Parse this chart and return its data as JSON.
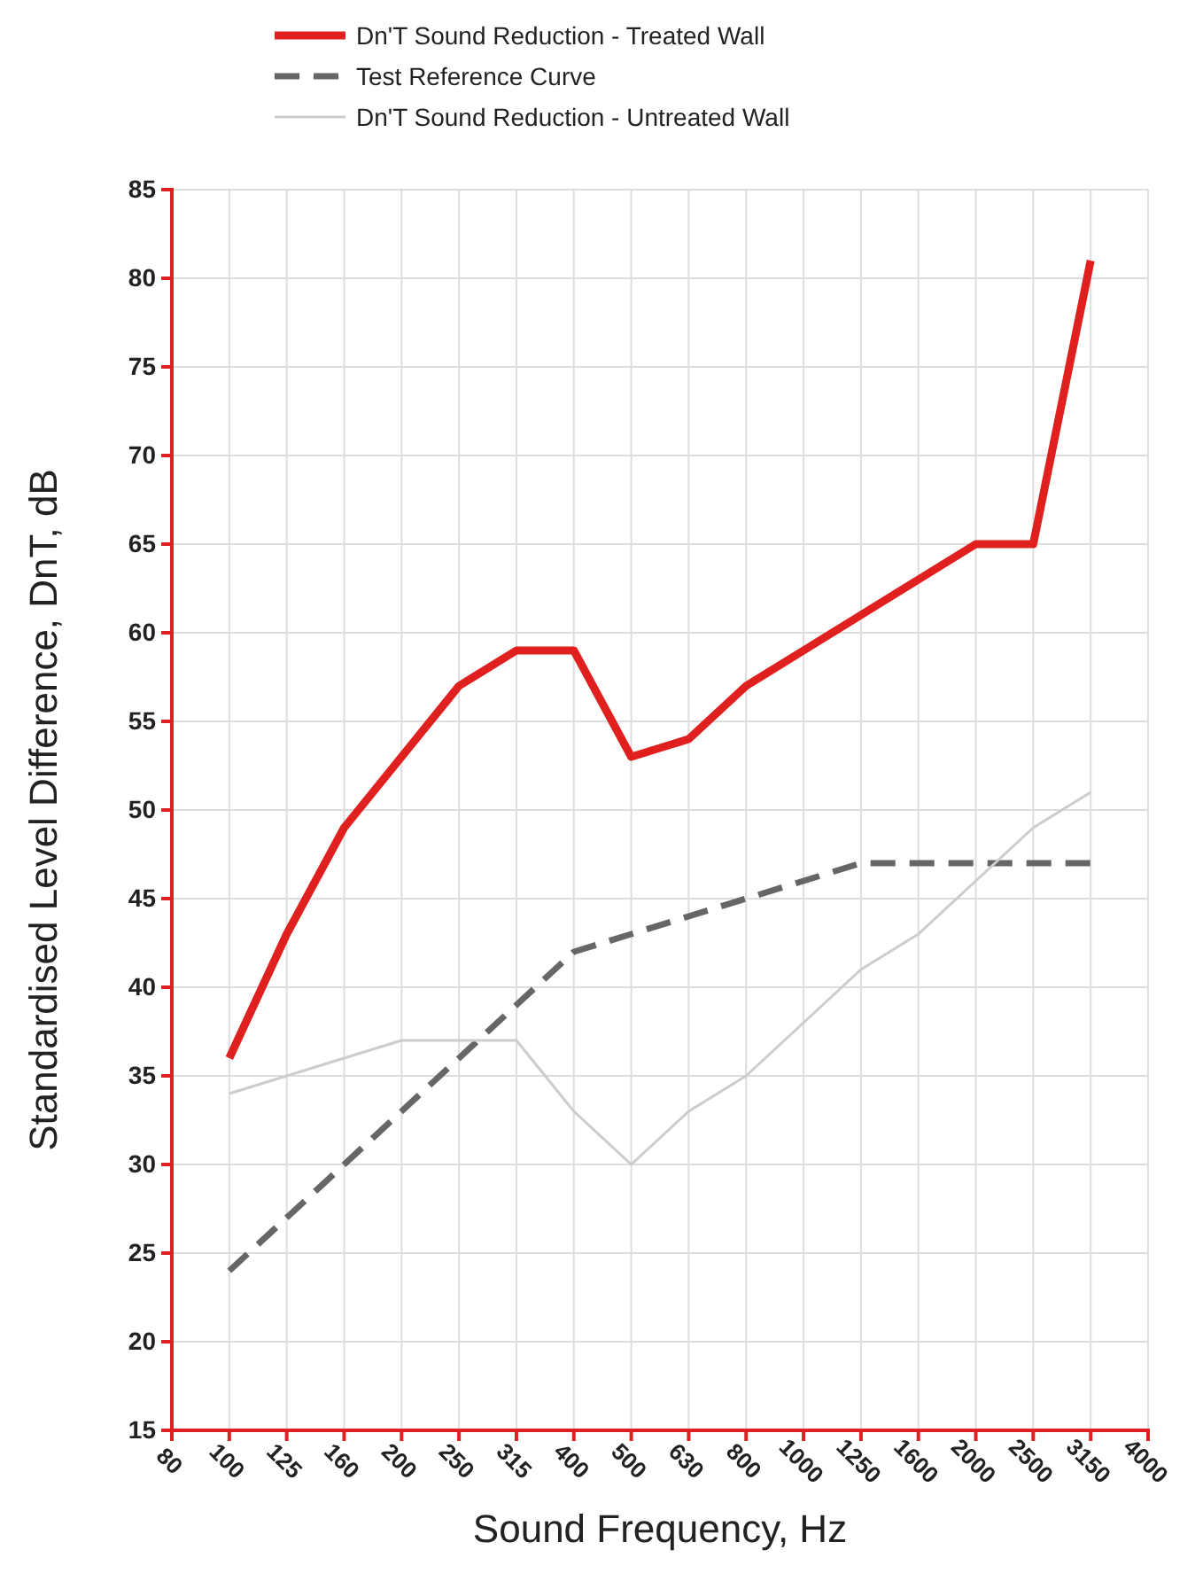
{
  "chart_data": {
    "type": "line",
    "xlabel": "Sound Frequency, Hz",
    "ylabel": "Standardised Level Difference, DnT,  dB",
    "categories": [
      "80",
      "100",
      "125",
      "160",
      "200",
      "250",
      "315",
      "400",
      "500",
      "630",
      "800",
      "1000",
      "1250",
      "1600",
      "2000",
      "2500",
      "3150",
      "4000"
    ],
    "series": [
      {
        "name": "Dn'T Sound Reduction - Treated Wall",
        "color": "#e0201e",
        "line_style": "solid",
        "values": [
          null,
          36,
          43,
          49,
          53,
          57,
          59,
          59,
          53,
          54,
          57,
          59,
          61,
          63,
          65,
          65,
          81,
          null
        ]
      },
      {
        "name": "Test Reference Curve",
        "color": "#666666",
        "line_style": "dashed",
        "values": [
          null,
          24,
          27,
          30,
          33,
          36,
          39,
          42,
          43,
          44,
          45,
          46,
          47,
          47,
          47,
          47,
          47,
          null
        ]
      },
      {
        "name": "Dn'T Sound Reduction - Untreated Wall",
        "color": "#cccccc",
        "line_style": "solid",
        "values": [
          null,
          34,
          35,
          36,
          37,
          37,
          37,
          33,
          30,
          33,
          35,
          38,
          41,
          43,
          46,
          49,
          51,
          null
        ]
      }
    ],
    "ylim": [
      15,
      85
    ],
    "yticks": [
      15,
      20,
      25,
      30,
      35,
      40,
      45,
      50,
      55,
      60,
      65,
      70,
      75,
      80,
      85
    ],
    "grid": true,
    "legend": "top left",
    "marker": "none"
  }
}
